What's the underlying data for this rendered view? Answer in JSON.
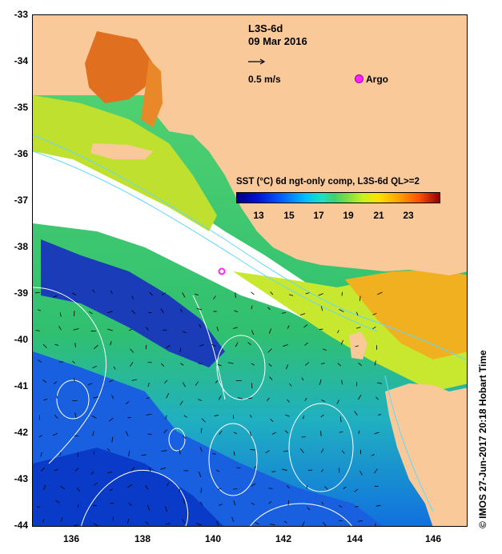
{
  "map": {
    "title": "L3S-6d",
    "date": "09 Mar 2016",
    "vector_scale_label": "0.5 m/s",
    "argo_label": "Argo",
    "y_axis_labels": [
      "-33",
      "-34",
      "-35",
      "-36",
      "-37",
      "-38",
      "-39",
      "-40",
      "-41",
      "-42",
      "-43",
      "-44"
    ],
    "x_axis_labels": [
      "136",
      "138",
      "140",
      "142",
      "144",
      "146"
    ],
    "colorbar": {
      "title": "SST (°C) 6d ngt-only comp, L3S-6d QL>=2",
      "labels": [
        "13",
        "15",
        "17",
        "19",
        "21",
        "23"
      ]
    },
    "credit": "©  IMOS 27-Jun-2017 20:18 Hobart Time",
    "colors": {
      "land": "#f9c99a",
      "argo": "#ff22ff",
      "contour": "#ffffff",
      "current": "#60d8ff"
    }
  }
}
